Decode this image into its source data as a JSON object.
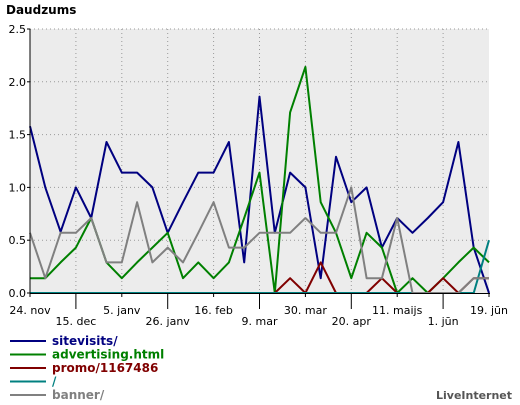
{
  "chart_data": {
    "type": "line",
    "title": "Daudzums",
    "ylim": [
      0,
      2.5
    ],
    "yticks": [
      "0.0",
      "0.5",
      "1.0",
      "1.5",
      "2.0",
      "2.5"
    ],
    "grid": true,
    "x_tick_labels": [
      {
        "index": 0,
        "label": "24. nov",
        "row": 1
      },
      {
        "index": 3,
        "label": "15. dec",
        "row": 2
      },
      {
        "index": 6,
        "label": "5. janv",
        "row": 1
      },
      {
        "index": 9,
        "label": "26. janv",
        "row": 2
      },
      {
        "index": 12,
        "label": "16. feb",
        "row": 1
      },
      {
        "index": 15,
        "label": "9. mar",
        "row": 2
      },
      {
        "index": 18,
        "label": "30. mar",
        "row": 1
      },
      {
        "index": 21,
        "label": "20. apr",
        "row": 2
      },
      {
        "index": 24,
        "label": "11. maijs",
        "row": 1
      },
      {
        "index": 27,
        "label": "1. jūn",
        "row": 2
      },
      {
        "index": 30,
        "label": "19. jūn",
        "row": 1
      }
    ],
    "series": [
      {
        "name": "sitevisits/",
        "color": "#000080",
        "values": [
          1.58,
          1.0,
          0.58,
          1.0,
          0.71,
          1.43,
          1.14,
          1.14,
          1.0,
          0.57,
          0.86,
          1.14,
          1.14,
          1.43,
          0.29,
          1.86,
          0.57,
          1.14,
          1.0,
          0.14,
          1.29,
          0.86,
          1.0,
          0.43,
          0.71,
          0.57,
          0.71,
          0.86,
          1.43,
          0.43,
          0.0
        ]
      },
      {
        "name": "advertising.html",
        "color": "#008000",
        "values": [
          0.14,
          0.14,
          0.29,
          0.43,
          0.71,
          0.29,
          0.14,
          0.29,
          0.43,
          0.57,
          0.14,
          0.29,
          0.14,
          0.29,
          0.71,
          1.14,
          0.0,
          1.71,
          2.14,
          0.86,
          0.57,
          0.14,
          0.57,
          0.43,
          0.0,
          0.14,
          0.0,
          0.14,
          0.29,
          0.43,
          0.29
        ]
      },
      {
        "name": "promo/1167486",
        "color": "#800000",
        "values": [
          0.0,
          0.0,
          0.0,
          0.0,
          0.0,
          0.0,
          0.0,
          0.0,
          0.0,
          0.0,
          0.0,
          0.0,
          0.0,
          0.0,
          0.0,
          0.0,
          0.0,
          0.14,
          0.0,
          0.29,
          0.0,
          0.0,
          0.0,
          0.14,
          0.0,
          0.0,
          0.0,
          0.14,
          0.0,
          0.14,
          0.14
        ]
      },
      {
        "name": "/",
        "color": "#008080",
        "values": [
          0.0,
          0.0,
          0.0,
          0.0,
          0.0,
          0.0,
          0.0,
          0.0,
          0.0,
          0.0,
          0.0,
          0.0,
          0.0,
          0.0,
          0.0,
          0.0,
          0.0,
          0.0,
          0.0,
          0.0,
          0.0,
          0.0,
          0.0,
          0.0,
          0.0,
          0.0,
          0.0,
          0.0,
          0.0,
          0.0,
          0.5
        ]
      },
      {
        "name": "banner/",
        "color": "#808080",
        "values": [
          0.57,
          0.14,
          0.57,
          0.57,
          0.71,
          0.29,
          0.29,
          0.86,
          0.29,
          0.43,
          0.29,
          0.57,
          0.86,
          0.43,
          0.43,
          0.57,
          0.57,
          0.57,
          0.71,
          0.57,
          0.57,
          1.0,
          0.14,
          0.14,
          0.71,
          0.0,
          0.0,
          0.0,
          0.0,
          0.14,
          0.14
        ]
      }
    ]
  },
  "credit": "LiveInternet"
}
